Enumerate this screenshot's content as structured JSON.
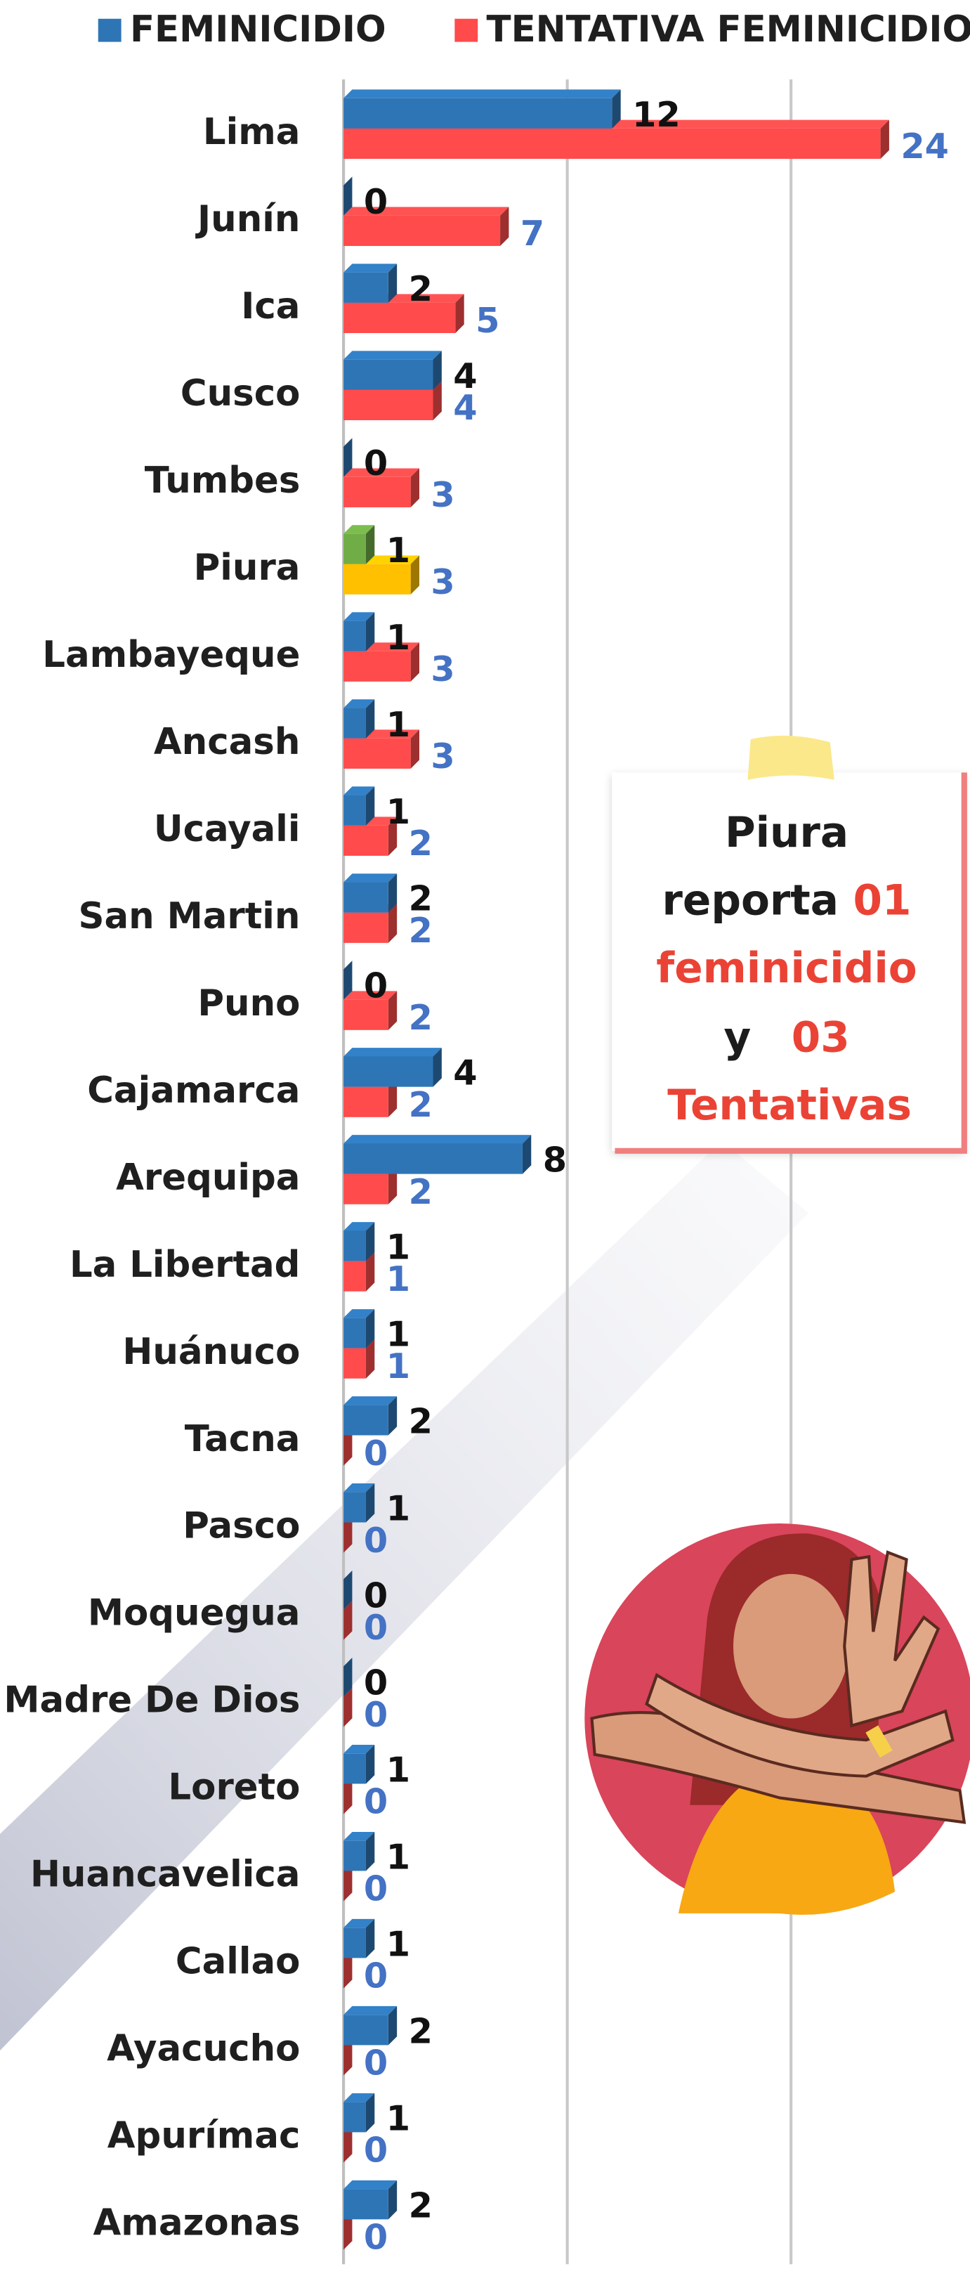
{
  "chart_data": {
    "type": "hbar3d",
    "categories": [
      "Lima",
      "Junín",
      "Ica",
      "Cusco",
      "Tumbes",
      "Piura",
      "Lambayeque",
      "Ancash",
      "Ucayali",
      "San Martin",
      "Puno",
      "Cajamarca",
      "Arequipa",
      "La Libertad",
      "Huánuco",
      "Tacna",
      "Pasco",
      "Moquegua",
      "Madre De Dios",
      "Loreto",
      "Huancavelica",
      "Callao",
      "Ayacucho",
      "Apurímac",
      "Amazonas"
    ],
    "series": [
      {
        "name": "FEMINICIDIO",
        "color": "#2e75b6",
        "values": [
          12,
          0,
          2,
          4,
          0,
          1,
          1,
          1,
          1,
          2,
          0,
          4,
          8,
          1,
          1,
          2,
          1,
          0,
          0,
          1,
          1,
          1,
          2,
          1,
          2
        ],
        "point_colors": [
          "#2e75b6",
          "#2e75b6",
          "#2e75b6",
          "#2e75b6",
          "#2e75b6",
          "#70ad47",
          "#2e75b6",
          "#2e75b6",
          "#2e75b6",
          "#2e75b6",
          "#2e75b6",
          "#2e75b6",
          "#2e75b6",
          "#2e75b6",
          "#2e75b6",
          "#2e75b6",
          "#2e75b6",
          "#2e75b6",
          "#2e75b6",
          "#2e75b6",
          "#2e75b6",
          "#2e75b6",
          "#2e75b6",
          "#2e75b6",
          "#2e75b6"
        ]
      },
      {
        "name": "TENTATIVA FEMINICIDIO",
        "color": "#ff4b4b",
        "values": [
          24,
          7,
          5,
          4,
          3,
          3,
          3,
          3,
          2,
          2,
          2,
          2,
          2,
          1,
          1,
          0,
          0,
          0,
          0,
          0,
          0,
          0,
          0,
          0,
          0
        ],
        "point_colors": [
          "#ff4b4b",
          "#ff4b4b",
          "#ff4b4b",
          "#ff4b4b",
          "#ff4b4b",
          "#ffc000",
          "#ff4b4b",
          "#ff4b4b",
          "#ff4b4b",
          "#ff4b4b",
          "#ff4b4b",
          "#ff4b4b",
          "#ff4b4b",
          "#ff4b4b",
          "#ff4b4b",
          "#ff4b4b",
          "#ff4b4b",
          "#ff4b4b",
          "#ff4b4b",
          "#ff4b4b",
          "#ff4b4b",
          "#ff4b4b",
          "#ff4b4b",
          "#ff4b4b",
          "#ff4b4b"
        ]
      }
    ],
    "xlim": [
      0,
      28
    ],
    "gridlines": [
      10,
      20
    ],
    "grid": true,
    "legend": "top",
    "annotation": {
      "lines": [
        [
          "Piura"
        ],
        [
          "reporta",
          "01"
        ],
        [
          "feminicidio"
        ],
        [
          "y",
          "03"
        ],
        [
          "Tentativas"
        ]
      ]
    }
  }
}
